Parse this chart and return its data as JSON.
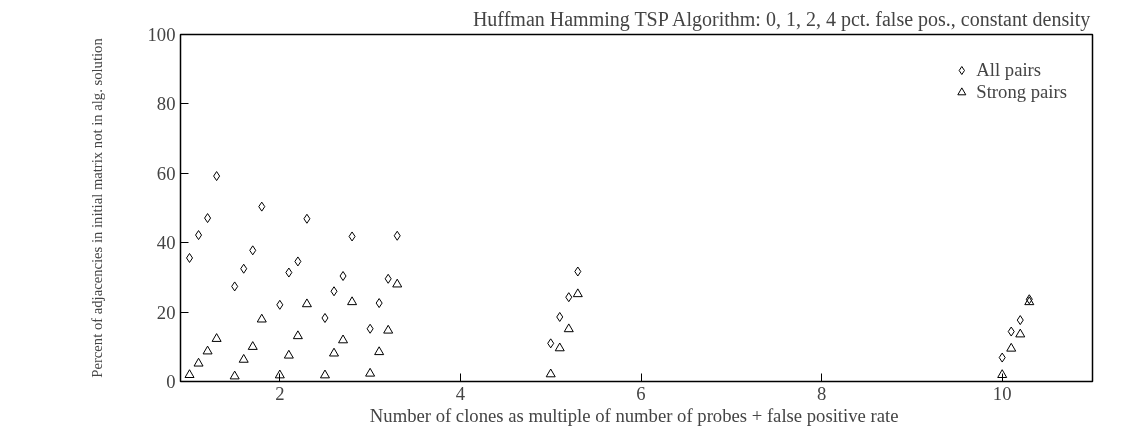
{
  "chart_data": {
    "type": "scatter",
    "title": "Huffman Hamming TSP Algorithm: 0, 1, 2, 4 pct. false pos., constant density",
    "xlabel": "Number of clones as multiple of number of probes + false positive  rate",
    "ylabel": "Percent of adjacencies in initial matrix not in alg. solution",
    "xlim": [
      0.9,
      11
    ],
    "ylim": [
      0,
      100
    ],
    "xticks": [
      2,
      4,
      6,
      8,
      10
    ],
    "yticks": [
      0,
      20,
      40,
      60,
      80,
      100
    ],
    "grid": false,
    "legend": "top right",
    "series": [
      {
        "name": "All pairs",
        "color": "#000000",
        "marker": "diamond",
        "x": [
          1.0,
          1.1,
          1.2,
          1.3,
          1.5,
          1.6,
          1.7,
          1.8,
          2.0,
          2.1,
          2.2,
          2.3,
          2.5,
          2.6,
          2.7,
          2.8,
          3.0,
          3.1,
          3.2,
          3.3,
          5.0,
          5.1,
          5.2,
          5.3,
          10.0,
          10.1,
          10.2,
          10.3
        ],
        "values": [
          35.6,
          42.2,
          47.1,
          59.2,
          27.4,
          32.5,
          37.8,
          50.4,
          22.1,
          31.4,
          34.6,
          46.9,
          18.3,
          26.0,
          30.4,
          41.8,
          15.2,
          22.6,
          29.6,
          42.0,
          11.0,
          18.6,
          24.3,
          31.7,
          6.9,
          14.4,
          17.7,
          23.7
        ]
      },
      {
        "name": "Strong pairs",
        "color": "#000000",
        "marker": "triangle",
        "x": [
          1.0,
          1.1,
          1.2,
          1.3,
          1.5,
          1.6,
          1.7,
          1.8,
          2.0,
          2.1,
          2.2,
          2.3,
          2.5,
          2.6,
          2.7,
          2.8,
          3.0,
          3.1,
          3.2,
          3.3,
          5.0,
          5.1,
          5.2,
          5.3,
          10.0,
          10.1,
          10.2,
          10.3
        ],
        "values": [
          1.9,
          5.2,
          8.7,
          12.3,
          1.5,
          6.3,
          10.0,
          17.9,
          1.8,
          7.5,
          13.1,
          22.3,
          1.8,
          8.1,
          11.9,
          22.9,
          2.3,
          8.5,
          14.7,
          28.0,
          2.1,
          9.6,
          15.1,
          25.2,
          1.9,
          9.5,
          13.6,
          22.9
        ]
      }
    ]
  }
}
